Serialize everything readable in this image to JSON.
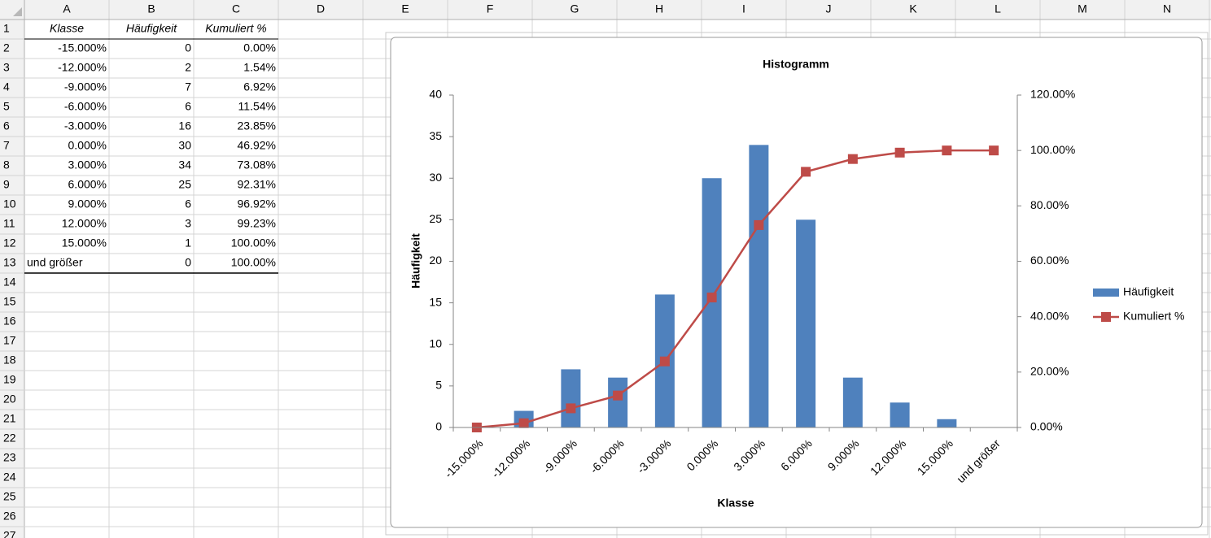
{
  "sheet": {
    "columns": [
      "A",
      "B",
      "C",
      "D",
      "E",
      "F",
      "G",
      "H",
      "I",
      "J",
      "K",
      "L",
      "M",
      "N"
    ],
    "rows": [
      1,
      2,
      3,
      4,
      5,
      6,
      7,
      8,
      9,
      10,
      11,
      12,
      13,
      14,
      15,
      16,
      17,
      18,
      19,
      20,
      21,
      22,
      23,
      24,
      25,
      26,
      27
    ],
    "cells": [
      [
        "Klasse",
        "Häufigkeit",
        "Kumuliert %"
      ],
      [
        "-15.000%",
        "0",
        "0.00%"
      ],
      [
        "-12.000%",
        "2",
        "1.54%"
      ],
      [
        "-9.000%",
        "7",
        "6.92%"
      ],
      [
        "-6.000%",
        "6",
        "11.54%"
      ],
      [
        "-3.000%",
        "16",
        "23.85%"
      ],
      [
        "0.000%",
        "30",
        "46.92%"
      ],
      [
        "3.000%",
        "34",
        "73.08%"
      ],
      [
        "6.000%",
        "25",
        "92.31%"
      ],
      [
        "9.000%",
        "6",
        "96.92%"
      ],
      [
        "12.000%",
        "3",
        "99.23%"
      ],
      [
        "15.000%",
        "1",
        "100.00%"
      ],
      [
        "und größer",
        "0",
        "100.00%"
      ]
    ]
  },
  "chart_data": {
    "type": "combo",
    "title": "Histogramm",
    "x_label": "Klasse",
    "y_label": "Häufigkeit",
    "categories": [
      "-15.000%",
      "-12.000%",
      "-9.000%",
      "-6.000%",
      "-3.000%",
      "0.000%",
      "3.000%",
      "6.000%",
      "9.000%",
      "12.000%",
      "15.000%",
      "und größer"
    ],
    "series": [
      {
        "name": "Häufigkeit",
        "type": "bar",
        "color": "#4f81bd",
        "values": [
          0,
          2,
          7,
          6,
          16,
          30,
          34,
          25,
          6,
          3,
          1,
          0
        ]
      },
      {
        "name": "Kumuliert %",
        "type": "line",
        "axis": "y2",
        "color": "#be4b48",
        "values": [
          0,
          1.54,
          6.92,
          11.54,
          23.85,
          46.92,
          73.08,
          92.31,
          96.92,
          99.23,
          100,
          100
        ]
      }
    ],
    "ylim": [
      0,
      40
    ],
    "yticks": [
      0,
      5,
      10,
      15,
      20,
      25,
      30,
      35,
      40
    ],
    "y2lim": [
      0,
      120
    ],
    "y2ticks": [
      {
        "value": 0,
        "label": "0.00%"
      },
      {
        "value": 20,
        "label": "20.00%"
      },
      {
        "value": 40,
        "label": "40.00%"
      },
      {
        "value": 60,
        "label": "60.00%"
      },
      {
        "value": 80,
        "label": "80.00%"
      },
      {
        "value": 100,
        "label": "100.00%"
      },
      {
        "value": 120,
        "label": "120.00%"
      }
    ],
    "legend": "right",
    "grid": false
  }
}
